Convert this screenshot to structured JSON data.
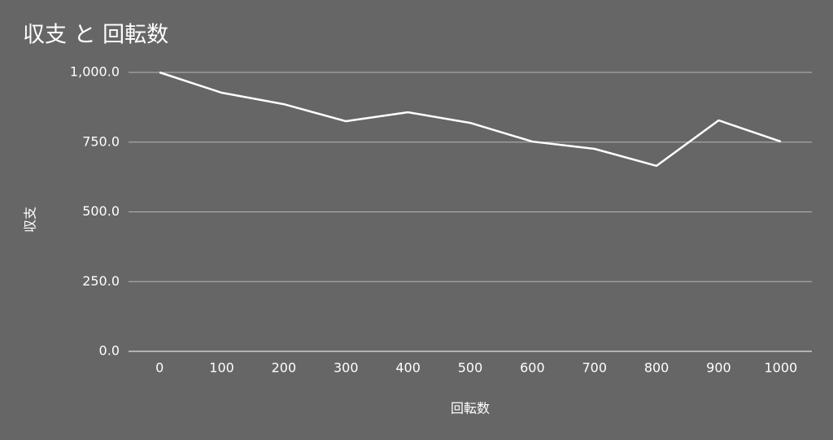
{
  "chart_data": {
    "type": "line",
    "title": "収支 と 回転数",
    "x_label": "回転数",
    "y_label": "収支",
    "categories": [
      "0",
      "100",
      "200",
      "300",
      "400",
      "500",
      "600",
      "700",
      "800",
      "900",
      "1000"
    ],
    "series": [
      {
        "name": "収支",
        "color": "#ffffff",
        "values": [
          1000,
          927,
          886,
          825,
          857,
          819,
          752,
          726,
          665,
          828,
          752
        ]
      }
    ],
    "ylim": [
      0,
      1000
    ],
    "yticks": [
      {
        "value": 0,
        "label": "0.0"
      },
      {
        "value": 250,
        "label": "250.0"
      },
      {
        "value": 500,
        "label": "500.0"
      },
      {
        "value": 750,
        "label": "750.0"
      },
      {
        "value": 1000,
        "label": "1,000.0"
      }
    ],
    "grid": true
  }
}
